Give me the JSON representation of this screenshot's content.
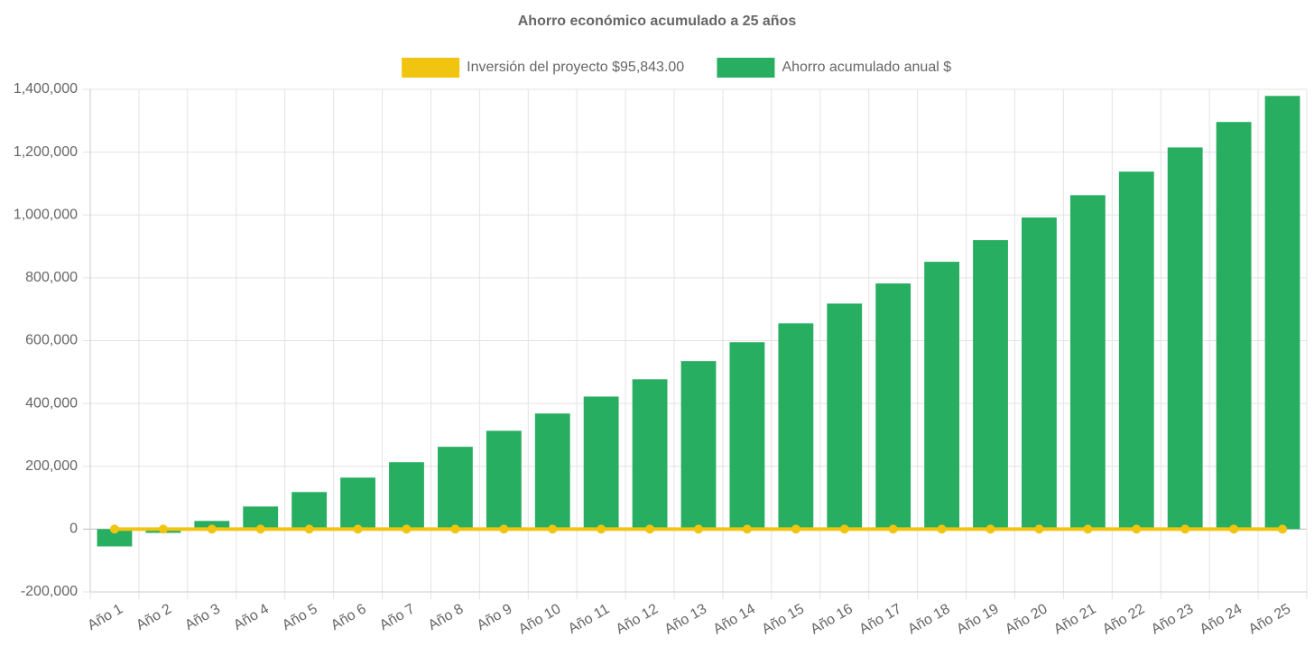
{
  "chart_data": {
    "type": "bar",
    "title": "Ahorro económico acumulado a 25 años",
    "categories": [
      "Año 1",
      "Año 2",
      "Año 3",
      "Año 4",
      "Año 5",
      "Año 6",
      "Año 7",
      "Año 8",
      "Año 9",
      "Año 10",
      "Año 11",
      "Año 12",
      "Año 13",
      "Año 14",
      "Año 15",
      "Año 16",
      "Año 17",
      "Año 18",
      "Año 19",
      "Año 20",
      "Año 21",
      "Año 22",
      "Año 23",
      "Año 24",
      "Año 25"
    ],
    "series": [
      {
        "name": "Inversión del proyecto $95,843.00",
        "type": "line",
        "color": "#f1c40f",
        "values": [
          0,
          0,
          0,
          0,
          0,
          0,
          0,
          0,
          0,
          0,
          0,
          0,
          0,
          0,
          0,
          0,
          0,
          0,
          0,
          0,
          0,
          0,
          0,
          0,
          0
        ]
      },
      {
        "name": "Ahorro acumulado anual $",
        "type": "bar",
        "color": "#27ae60",
        "values": [
          -55000,
          -12000,
          26000,
          72000,
          118000,
          164000,
          213000,
          262000,
          313000,
          368000,
          422000,
          477000,
          535000,
          595000,
          655000,
          718000,
          782000,
          851000,
          920000,
          992000,
          1063000,
          1138000,
          1215000,
          1296000,
          1379000
        ]
      }
    ],
    "ylim": [
      -200000,
      1400000
    ],
    "yticks": [
      {
        "value": -200000,
        "label": "-200,000"
      },
      0,
      {
        "value": 200000,
        "label": "200,000"
      },
      {
        "value": 400000,
        "label": "400,000"
      },
      {
        "value": 600000,
        "label": "600,000"
      },
      {
        "value": 800000,
        "label": "800,000"
      },
      {
        "value": 1000000,
        "label": "1,000,000"
      },
      {
        "value": 1200000,
        "label": "1,200,000"
      },
      {
        "value": 1400000,
        "label": "1,400,000"
      }
    ],
    "grid": true,
    "legend": "top"
  }
}
